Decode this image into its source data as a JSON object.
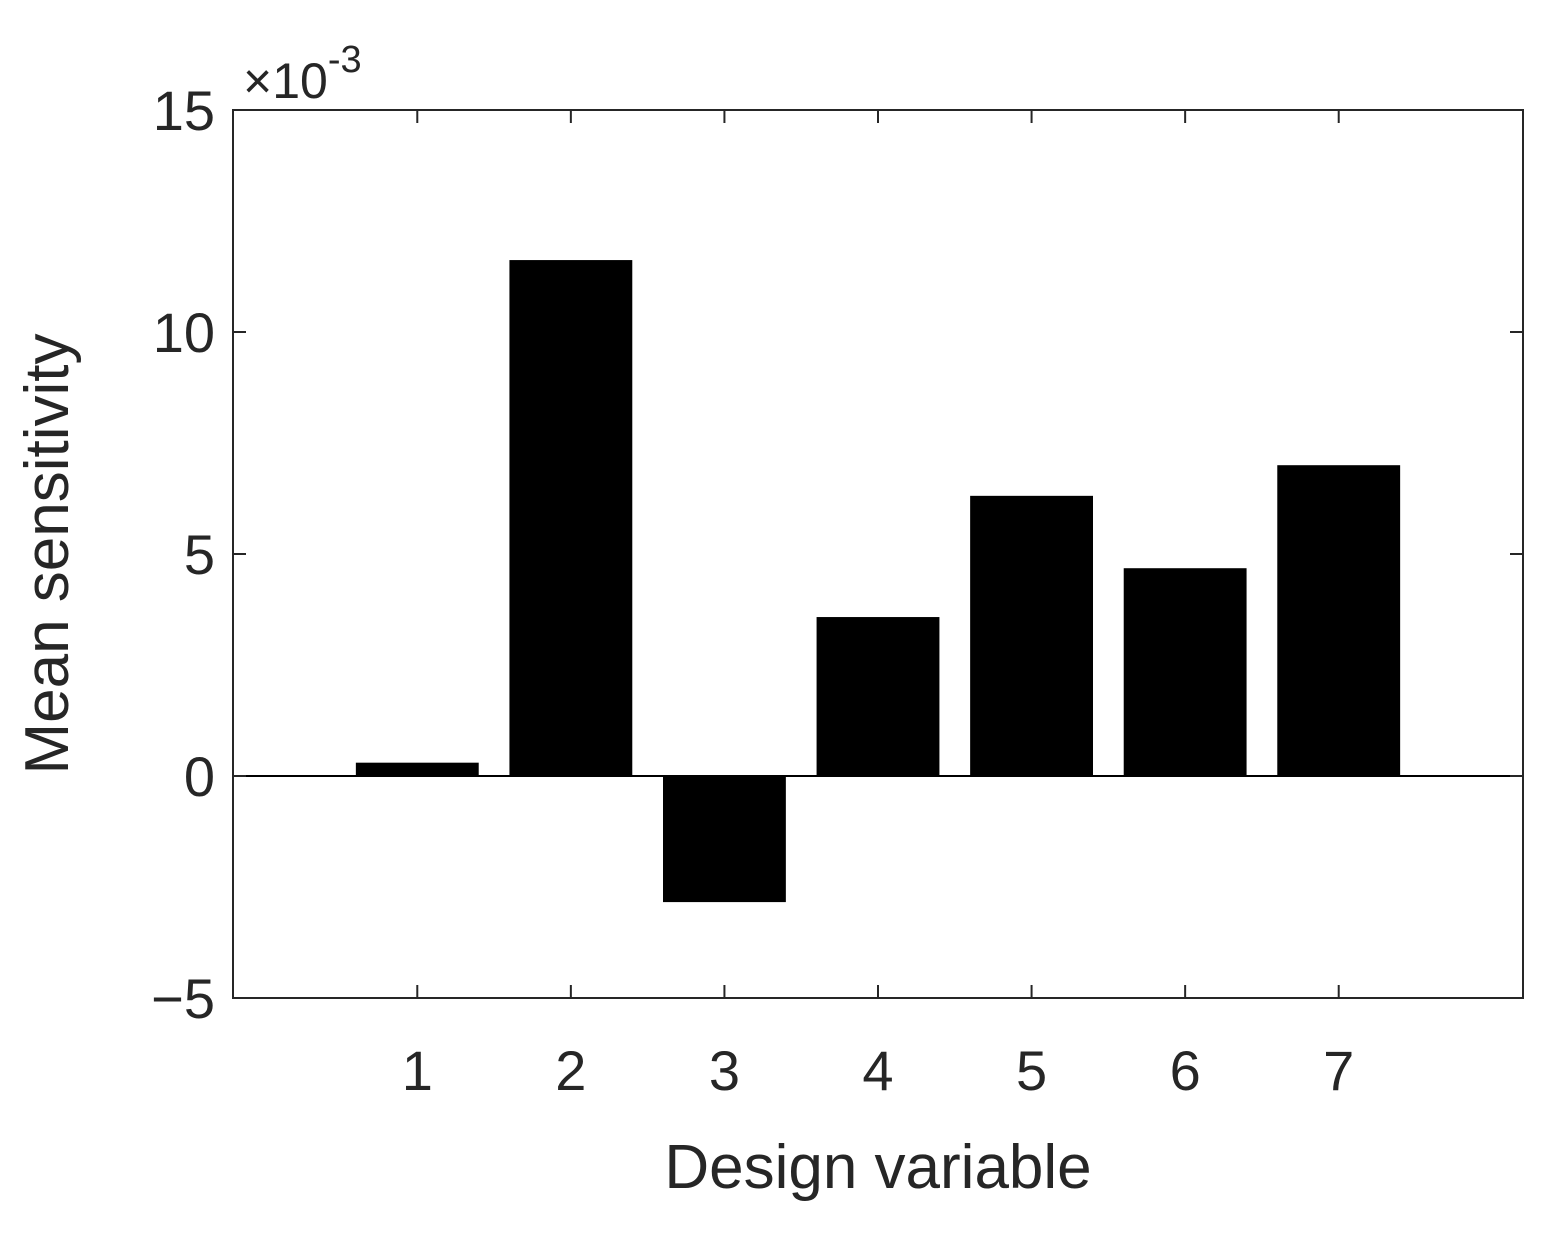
{
  "chart_data": {
    "type": "bar",
    "x_label": "Design variable",
    "y_label": "Mean sensitivity",
    "y_multiplier": {
      "base": "×10",
      "exponent": "-3"
    },
    "x": [
      1,
      2,
      3,
      4,
      5,
      6,
      7
    ],
    "values": [
      0.3,
      11.62,
      -2.84,
      3.58,
      6.31,
      4.68,
      7.0
    ],
    "color": "#000000",
    "xlim": [
      -0.2,
      8.2
    ],
    "xticks": [
      1,
      2,
      3,
      4,
      5,
      6,
      7
    ],
    "ylim": [
      -5,
      15
    ],
    "yticks": [
      {
        "value": -5,
        "label": "−5"
      },
      0,
      5,
      10,
      15
    ],
    "grid": false
  }
}
